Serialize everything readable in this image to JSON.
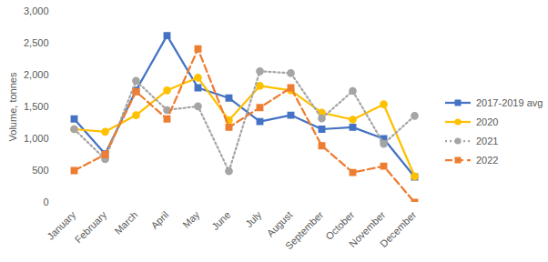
{
  "chart_data": {
    "type": "line",
    "y_label": "Volume, tonnes",
    "categories": [
      "January",
      "February",
      "March",
      "April",
      "May",
      "June",
      "July",
      "August",
      "September",
      "October",
      "November",
      "December"
    ],
    "series": [
      {
        "name": "2017-2019 avg",
        "color": "#4472c4",
        "marker": "square",
        "line_style": "solid",
        "values": [
          1310,
          760,
          1760,
          2620,
          1800,
          1640,
          1270,
          1370,
          1150,
          1180,
          1000,
          400
        ]
      },
      {
        "name": "2020",
        "color": "#ffc000",
        "marker": "circle",
        "line_style": "solid",
        "values": [
          1150,
          1110,
          1370,
          1760,
          1960,
          1290,
          1830,
          1760,
          1410,
          1300,
          1540,
          410
        ]
      },
      {
        "name": "2021",
        "color": "#a5a5a5",
        "marker": "circle",
        "line_style": "dotted",
        "values": [
          1150,
          680,
          1910,
          1450,
          1510,
          490,
          2060,
          2030,
          1320,
          1750,
          920,
          1360
        ]
      },
      {
        "name": "2022",
        "color": "#ed7d31",
        "marker": "square",
        "line_style": "dashed",
        "values": [
          500,
          750,
          1740,
          1310,
          2410,
          1180,
          1490,
          1800,
          890,
          470,
          570,
          0
        ]
      }
    ],
    "ylim": [
      0,
      3000
    ],
    "yticks": [
      0,
      500,
      {
        "value": 1000,
        "label": "1,000"
      },
      {
        "value": 1500,
        "label": "1,500"
      },
      {
        "value": 2000,
        "label": "2,000"
      },
      {
        "value": 2500,
        "label": "2,500"
      },
      {
        "value": 3000,
        "label": "3,000"
      }
    ],
    "grid": false,
    "legend": "right"
  }
}
